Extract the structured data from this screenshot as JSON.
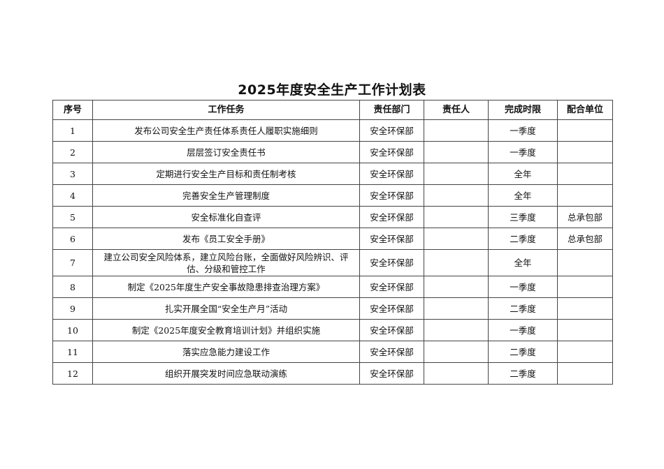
{
  "title": "2025年度安全生产工作计划表",
  "headers": [
    "序号",
    "工作任务",
    "责任部门",
    "责任人",
    "完成时限",
    "配合单位"
  ],
  "rows": [
    {
      "no": "1",
      "task": "发布公司安全生产责任体系责任人履职实施细则",
      "dept": "安全环保部",
      "person": "",
      "deadline": "一季度",
      "partner": ""
    },
    {
      "no": "2",
      "task": "层层签订安全责任书",
      "dept": "安全环保部",
      "person": "",
      "deadline": "一季度",
      "partner": ""
    },
    {
      "no": "3",
      "task": "定期进行安全生产目标和责任制考核",
      "dept": "安全环保部",
      "person": "",
      "deadline": "全年",
      "partner": ""
    },
    {
      "no": "4",
      "task": "完善安全生产管理制度",
      "dept": "安全环保部",
      "person": "",
      "deadline": "全年",
      "partner": ""
    },
    {
      "no": "5",
      "task": "安全标准化自查评",
      "dept": "安全环保部",
      "person": "",
      "deadline": "三季度",
      "partner": "总承包部"
    },
    {
      "no": "6",
      "task": "发布《员工安全手册》",
      "dept": "安全环保部",
      "person": "",
      "deadline": "二季度",
      "partner": "总承包部"
    },
    {
      "no": "7",
      "task": "建立公司安全风险体系，建立风险台账，全面做好风险辨识、评估、分级和管控工作",
      "dept": "安全环保部",
      "person": "",
      "deadline": "全年",
      "partner": ""
    },
    {
      "no": "8",
      "task": "制定《2025年度生产安全事故隐患排查治理方案》",
      "dept": "安全环保部",
      "person": "",
      "deadline": "一季度",
      "partner": ""
    },
    {
      "no": "9",
      "task": "扎实开展全国“安全生产月”活动",
      "dept": "安全环保部",
      "person": "",
      "deadline": "二季度",
      "partner": ""
    },
    {
      "no": "10",
      "task": "制定《2025年度安全教育培训计划》并组织实施",
      "dept": "安全环保部",
      "person": "",
      "deadline": "一季度",
      "partner": ""
    },
    {
      "no": "11",
      "task": "落实应急能力建设工作",
      "dept": "安全环保部",
      "person": "",
      "deadline": "二季度",
      "partner": ""
    },
    {
      "no": "12",
      "task": "组织开展突发时间应急联动演练",
      "dept": "安全环保部",
      "person": "",
      "deadline": "二季度",
      "partner": ""
    }
  ]
}
